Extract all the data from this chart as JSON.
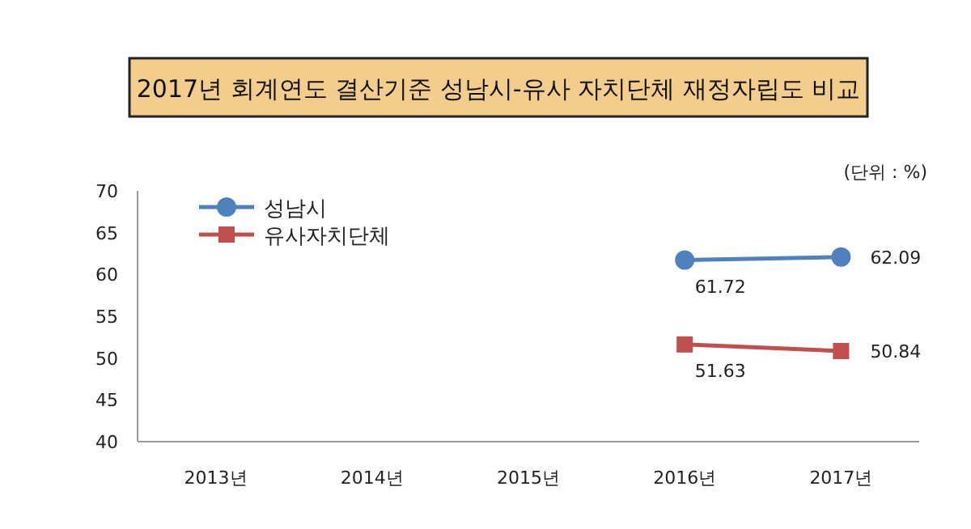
{
  "chart_data": {
    "type": "line",
    "title": "2017년 회계연도 결산기준 성남시-유사 자치단체 재정자립도 비교",
    "annotations": [
      "(단위 : %)"
    ],
    "categories": [
      "2013년",
      "2014년",
      "2015년",
      "2016년",
      "2017년"
    ],
    "series": [
      {
        "name": "성남시",
        "color": "#4f81bd",
        "marker": "circle",
        "values": [
          null,
          null,
          null,
          61.72,
          62.09
        ]
      },
      {
        "name": "유사자치단체",
        "color": "#c0504d",
        "marker": "square",
        "values": [
          null,
          null,
          null,
          51.63,
          50.84
        ]
      }
    ],
    "ylim": [
      40,
      70
    ],
    "yticks": [
      40,
      45,
      50,
      55,
      60,
      65,
      70
    ],
    "grid": false,
    "legend": "top left",
    "data_labels": true
  }
}
